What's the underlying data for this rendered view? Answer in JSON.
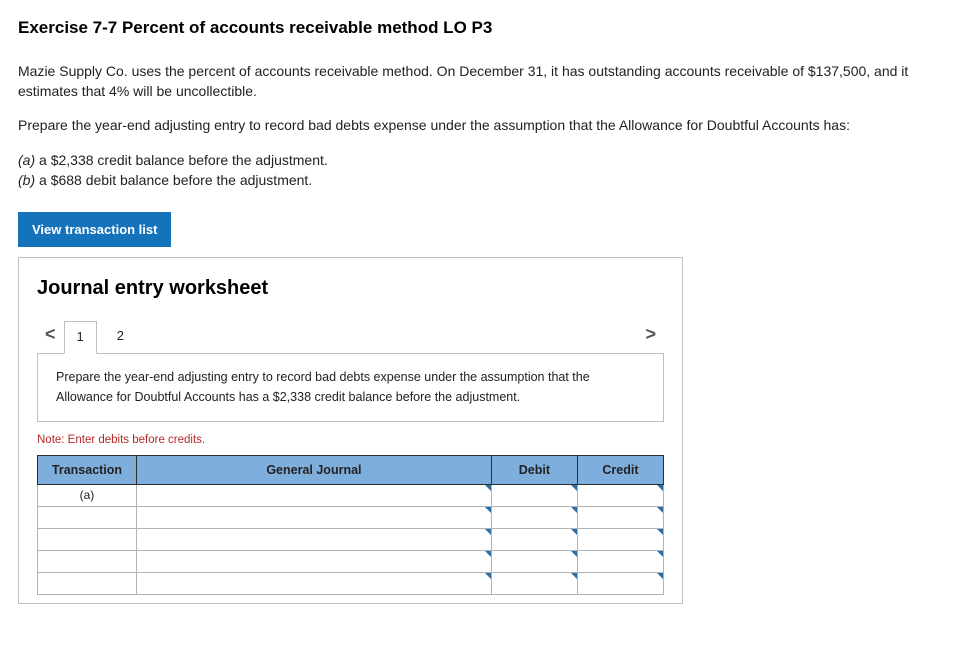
{
  "exercise": {
    "title": "Exercise 7-7 Percent of accounts receivable method LO P3",
    "intro": "Mazie Supply Co. uses the percent of accounts receivable method. On December 31, it has outstanding accounts receivable of $137,500, and it estimates that 4% will be uncollectible.",
    "instruction": "Prepare the year-end adjusting entry to record bad debts expense under the assumption that the Allowance for Doubtful Accounts has:",
    "scenarios": [
      {
        "label": "(a)",
        "text": " a $2,338 credit balance before the adjustment."
      },
      {
        "label": "(b)",
        "text": " a $688 debit balance before the adjustment."
      }
    ]
  },
  "button": {
    "view_list": "View transaction list"
  },
  "worksheet": {
    "title": "Journal entry worksheet",
    "chev_left": "<",
    "chev_right": ">",
    "tabs": [
      "1",
      "2"
    ],
    "active_tab": 0,
    "prompt": "Prepare the year-end adjusting entry to record bad debts expense under the assumption that the Allowance for Doubtful Accounts has a $2,338 credit balance before the adjustment.",
    "note": "Note: Enter debits before credits.",
    "columns": {
      "transaction": "Transaction",
      "general_journal": "General Journal",
      "debit": "Debit",
      "credit": "Credit"
    },
    "rows": [
      {
        "transaction": "(a)",
        "gj": "",
        "debit": "",
        "credit": ""
      },
      {
        "transaction": "",
        "gj": "",
        "debit": "",
        "credit": ""
      },
      {
        "transaction": "",
        "gj": "",
        "debit": "",
        "credit": ""
      },
      {
        "transaction": "",
        "gj": "",
        "debit": "",
        "credit": ""
      },
      {
        "transaction": "",
        "gj": "",
        "debit": "",
        "credit": ""
      }
    ],
    "colors": {
      "header_bg": "#7eaedb",
      "accent": "#1473ba",
      "note_color": "#b4282b"
    }
  }
}
